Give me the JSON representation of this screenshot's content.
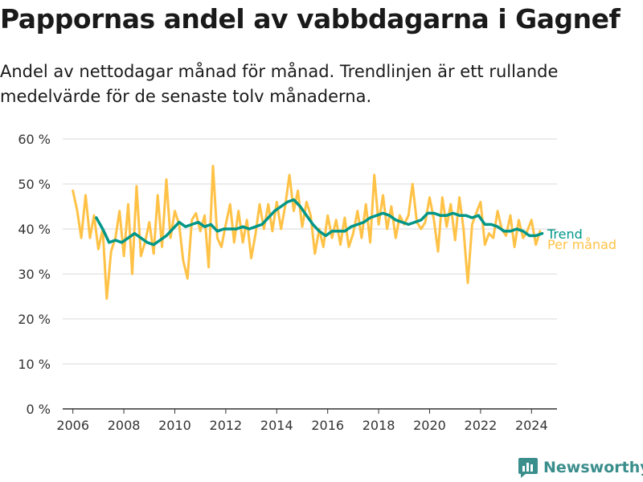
{
  "header": {
    "title": "Pappornas andel av vabbdagarna i Gagnef",
    "subtitle": "Andel av nettodagar månad för månad. Trendlinjen är ett rullande medelvärde för de senaste tolv månaderna."
  },
  "brand": {
    "name": "Newsworthy",
    "icon": "newsworthy-logo-icon",
    "color": "#3a8e8c"
  },
  "colors": {
    "monthly": "#ffc247",
    "trend": "#009688",
    "grid": "#d9d9d9",
    "axis": "#333333"
  },
  "chart_data": {
    "type": "line",
    "title": "Pappornas andel av vabbdagarna i Gagnef",
    "xlabel": "",
    "ylabel": "",
    "ylim": [
      0,
      60
    ],
    "xlim": [
      2005.6,
      2025.0
    ],
    "yticks": [
      0,
      10,
      20,
      30,
      40,
      50,
      60
    ],
    "ytick_labels": [
      "0 %",
      "10 %",
      "20 %",
      "30 %",
      "40 %",
      "50 %",
      "60 %"
    ],
    "xticks": [
      2006,
      2008,
      2010,
      2012,
      2014,
      2016,
      2018,
      2020,
      2022,
      2024
    ],
    "xtick_labels": [
      "2006",
      "2008",
      "2010",
      "2012",
      "2014",
      "2016",
      "2018",
      "2020",
      "2022",
      "2024"
    ],
    "grid": true,
    "legend": "line-end labels",
    "series": [
      {
        "name": "Per månad",
        "color": "#ffc247",
        "x": [
          2006.0,
          2006.17,
          2006.33,
          2006.5,
          2006.67,
          2006.83,
          2007.0,
          2007.17,
          2007.33,
          2007.5,
          2007.67,
          2007.83,
          2008.0,
          2008.17,
          2008.33,
          2008.5,
          2008.67,
          2008.83,
          2009.0,
          2009.17,
          2009.33,
          2009.5,
          2009.67,
          2009.83,
          2010.0,
          2010.17,
          2010.33,
          2010.5,
          2010.67,
          2010.83,
          2011.0,
          2011.17,
          2011.33,
          2011.5,
          2011.67,
          2011.83,
          2012.0,
          2012.17,
          2012.33,
          2012.5,
          2012.67,
          2012.83,
          2013.0,
          2013.17,
          2013.33,
          2013.5,
          2013.67,
          2013.83,
          2014.0,
          2014.17,
          2014.33,
          2014.5,
          2014.67,
          2014.83,
          2015.0,
          2015.17,
          2015.33,
          2015.5,
          2015.67,
          2015.83,
          2016.0,
          2016.17,
          2016.33,
          2016.5,
          2016.67,
          2016.83,
          2017.0,
          2017.17,
          2017.33,
          2017.5,
          2017.67,
          2017.83,
          2018.0,
          2018.17,
          2018.33,
          2018.5,
          2018.67,
          2018.83,
          2019.0,
          2019.17,
          2019.33,
          2019.5,
          2019.67,
          2019.83,
          2020.0,
          2020.17,
          2020.33,
          2020.5,
          2020.67,
          2020.83,
          2021.0,
          2021.17,
          2021.33,
          2021.5,
          2021.67,
          2021.83,
          2022.0,
          2022.17,
          2022.33,
          2022.5,
          2022.67,
          2022.83,
          2023.0,
          2023.17,
          2023.33,
          2023.5,
          2023.67,
          2023.83,
          2024.0,
          2024.17,
          2024.33
        ],
        "values": [
          48.5,
          44,
          38,
          47.5,
          38,
          43,
          35.5,
          40,
          24.5,
          35,
          38,
          44,
          34,
          45.5,
          30,
          49.5,
          34,
          37,
          41.5,
          34.5,
          47.5,
          36,
          51,
          38,
          44,
          41,
          33,
          29,
          42,
          43.5,
          39.5,
          43,
          31.5,
          54,
          38,
          36,
          41,
          45.5,
          37,
          44,
          37,
          42,
          33.5,
          39,
          45.5,
          40,
          45.5,
          39.5,
          46,
          40,
          45,
          52,
          44,
          48.5,
          40.5,
          46,
          43,
          34.5,
          40,
          36,
          43,
          38,
          42,
          36.5,
          42.5,
          36,
          39,
          44,
          38,
          45.5,
          37,
          52,
          41,
          47.5,
          40,
          45,
          38,
          43,
          41,
          43,
          50,
          41.5,
          40,
          41.5,
          47,
          42,
          35,
          47,
          40.5,
          45.5,
          37.5,
          47,
          40,
          28,
          41,
          43.5,
          46,
          36.5,
          39,
          38,
          44,
          40,
          38.5,
          43,
          36,
          42,
          38,
          39.5,
          42,
          36.5,
          39.5
        ]
      },
      {
        "name": "Trend",
        "color": "#009688",
        "x": [
          2006.92,
          2007.17,
          2007.42,
          2007.67,
          2007.92,
          2008.17,
          2008.42,
          2008.67,
          2008.92,
          2009.17,
          2009.42,
          2009.67,
          2009.92,
          2010.17,
          2010.42,
          2010.67,
          2010.92,
          2011.17,
          2011.42,
          2011.67,
          2011.92,
          2012.17,
          2012.42,
          2012.67,
          2012.92,
          2013.17,
          2013.42,
          2013.67,
          2013.92,
          2014.17,
          2014.42,
          2014.67,
          2014.92,
          2015.17,
          2015.42,
          2015.67,
          2015.92,
          2016.17,
          2016.42,
          2016.67,
          2016.92,
          2017.17,
          2017.42,
          2017.67,
          2017.92,
          2018.17,
          2018.42,
          2018.67,
          2018.92,
          2019.17,
          2019.42,
          2019.67,
          2019.92,
          2020.17,
          2020.42,
          2020.67,
          2020.92,
          2021.17,
          2021.42,
          2021.67,
          2021.92,
          2022.17,
          2022.42,
          2022.67,
          2022.92,
          2023.17,
          2023.42,
          2023.67,
          2023.92,
          2024.17,
          2024.42
        ],
        "values": [
          42.5,
          40,
          37,
          37.5,
          37,
          38,
          39,
          38,
          37,
          36.5,
          37.5,
          38.5,
          40,
          41.5,
          40.5,
          41,
          41.5,
          40.5,
          41,
          39.5,
          40,
          40,
          40,
          40.5,
          40,
          40.5,
          41,
          42.5,
          44,
          45,
          46,
          46.5,
          45,
          43,
          41,
          39.5,
          38.5,
          39.5,
          39.5,
          39.5,
          40.5,
          41,
          41.5,
          42.5,
          43,
          43.5,
          43,
          42,
          41.5,
          41,
          41.5,
          42,
          43.5,
          43.5,
          43,
          43,
          43.5,
          43,
          43,
          42.5,
          43,
          41,
          41,
          40.5,
          39.5,
          39.5,
          40,
          39.5,
          38.5,
          38.5,
          39
        ]
      }
    ]
  }
}
